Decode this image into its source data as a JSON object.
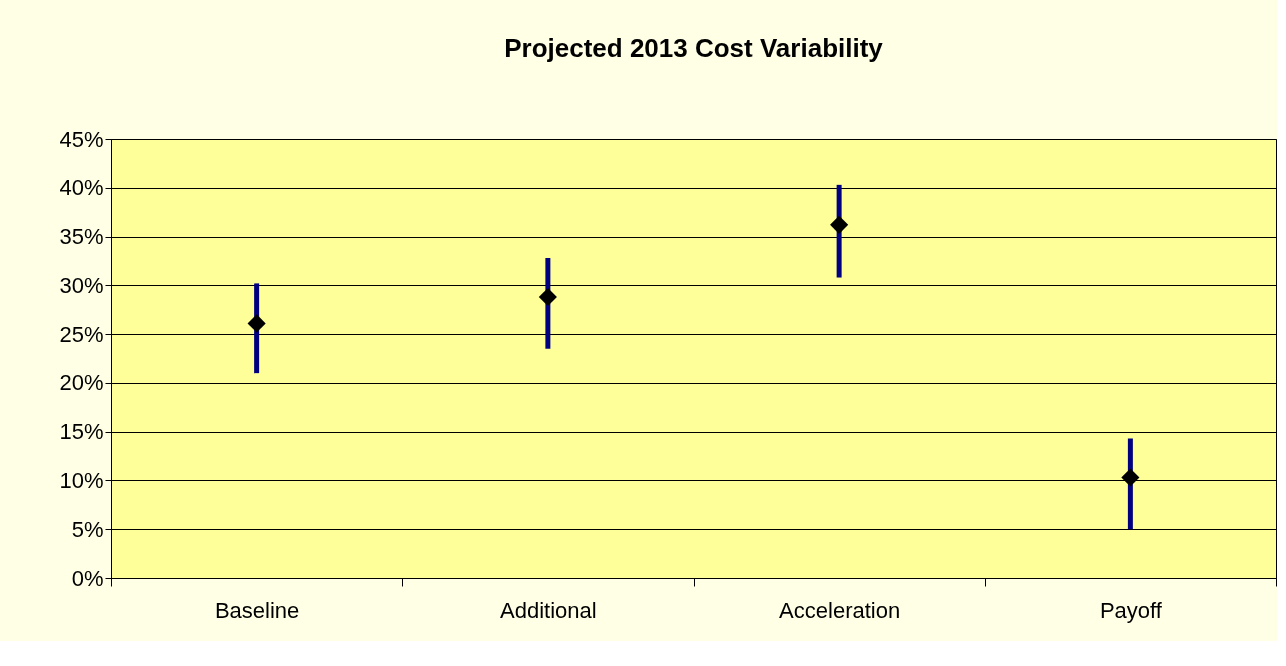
{
  "chart_data": {
    "type": "scatter",
    "title": "Projected 2013 Cost Variability",
    "categories": [
      "Baseline",
      "Additional",
      "Acceleration",
      "Payoff"
    ],
    "series": [
      {
        "color": "#000000",
        "values": [
          26.1,
          28.8,
          36.2,
          10.3
        ],
        "errors": [
          [
            21.0,
            30.2
          ],
          [
            23.5,
            32.8
          ],
          [
            30.8,
            40.3
          ],
          [
            5.0,
            14.3
          ]
        ]
      }
    ],
    "ylim": [
      0,
      45
    ],
    "yticks": [
      {
        "value": 0,
        "label": "0%"
      },
      {
        "value": 5,
        "label": "5%"
      },
      {
        "value": 10,
        "label": "10%"
      },
      {
        "value": 15,
        "label": "15%"
      },
      {
        "value": 20,
        "label": "20%"
      },
      {
        "value": 25,
        "label": "25%"
      },
      {
        "value": 30,
        "label": "30%"
      },
      {
        "value": 35,
        "label": "35%"
      },
      {
        "value": 40,
        "label": "40%"
      },
      {
        "value": 45,
        "label": "45%"
      }
    ],
    "grid": "y",
    "marker": "diamond"
  }
}
